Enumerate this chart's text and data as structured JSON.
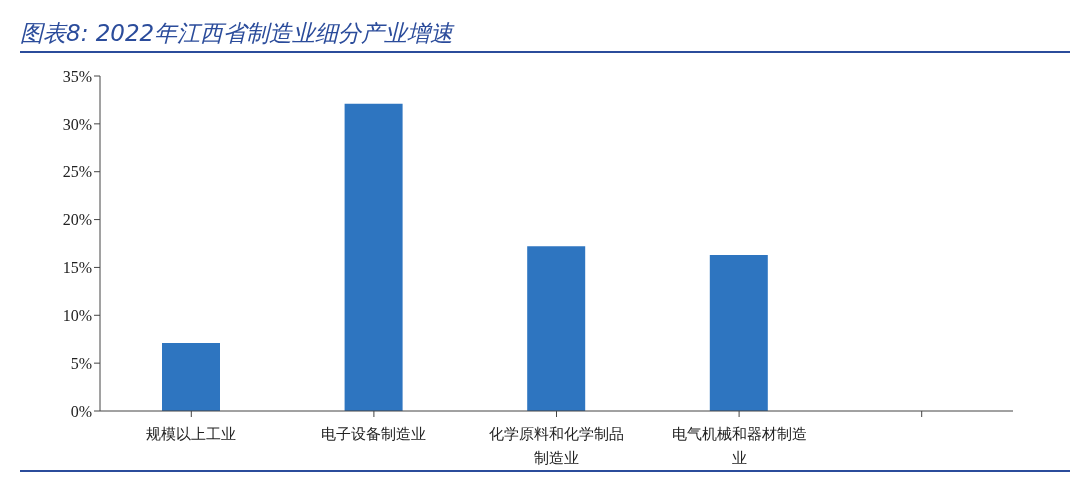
{
  "chart_data": {
    "type": "bar",
    "title": "图表8:  2022年江西省制造业细分产业增速",
    "categories": [
      "规模以上工业",
      "电子设备制造业",
      "化学原料和化学制品制造业",
      "电气机械和器材制造业",
      null
    ],
    "values": [
      7.1,
      32.1,
      17.2,
      16.3,
      null
    ],
    "color": "#2e75c0",
    "ylim": [
      0,
      35
    ],
    "yticks": [
      {
        "value": 0,
        "label": "0%"
      },
      {
        "value": 5,
        "label": "5%"
      },
      {
        "value": 10,
        "label": "10%"
      },
      {
        "value": 15,
        "label": "15%"
      },
      {
        "value": 20,
        "label": "20%"
      },
      {
        "value": 25,
        "label": "25%"
      },
      {
        "value": 30,
        "label": "30%"
      },
      {
        "value": 35,
        "label": "35%"
      }
    ],
    "grid": false
  }
}
